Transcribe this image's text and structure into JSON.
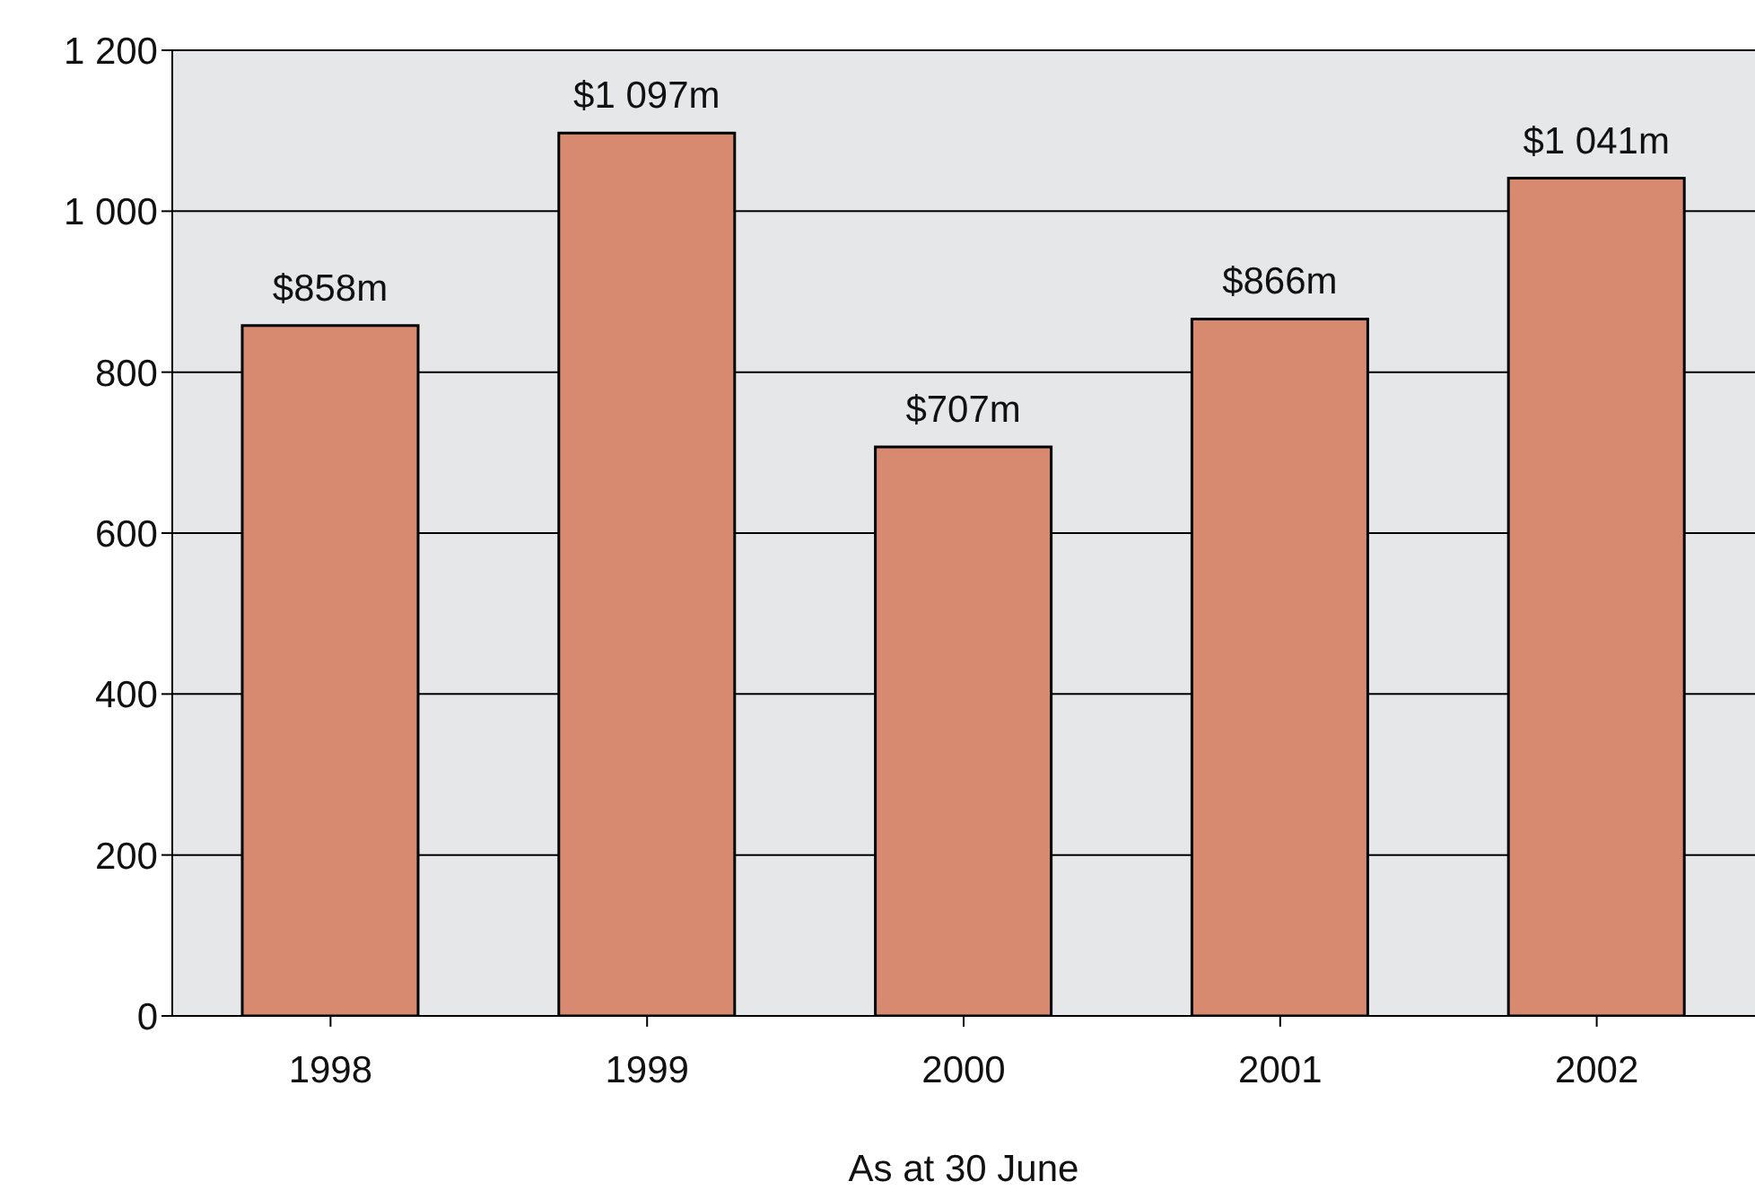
{
  "chart_data": {
    "type": "bar",
    "xlabel": "As at 30 June",
    "categories": [
      "1998",
      "1999",
      "2000",
      "2001",
      "2002"
    ],
    "values": [
      858,
      1097,
      707,
      866,
      1041
    ],
    "value_labels": [
      "$858m",
      "$1 097m",
      "$707m",
      "$866m",
      "$1 041m"
    ],
    "color": "#d78a70",
    "ylim": [
      0,
      1200
    ],
    "yticks": [
      0,
      200,
      400,
      600,
      800,
      {
        "value": 1000,
        "label": "1 000"
      },
      {
        "value": 1200,
        "label": "1 200"
      }
    ],
    "grid": "y",
    "legend": false
  }
}
